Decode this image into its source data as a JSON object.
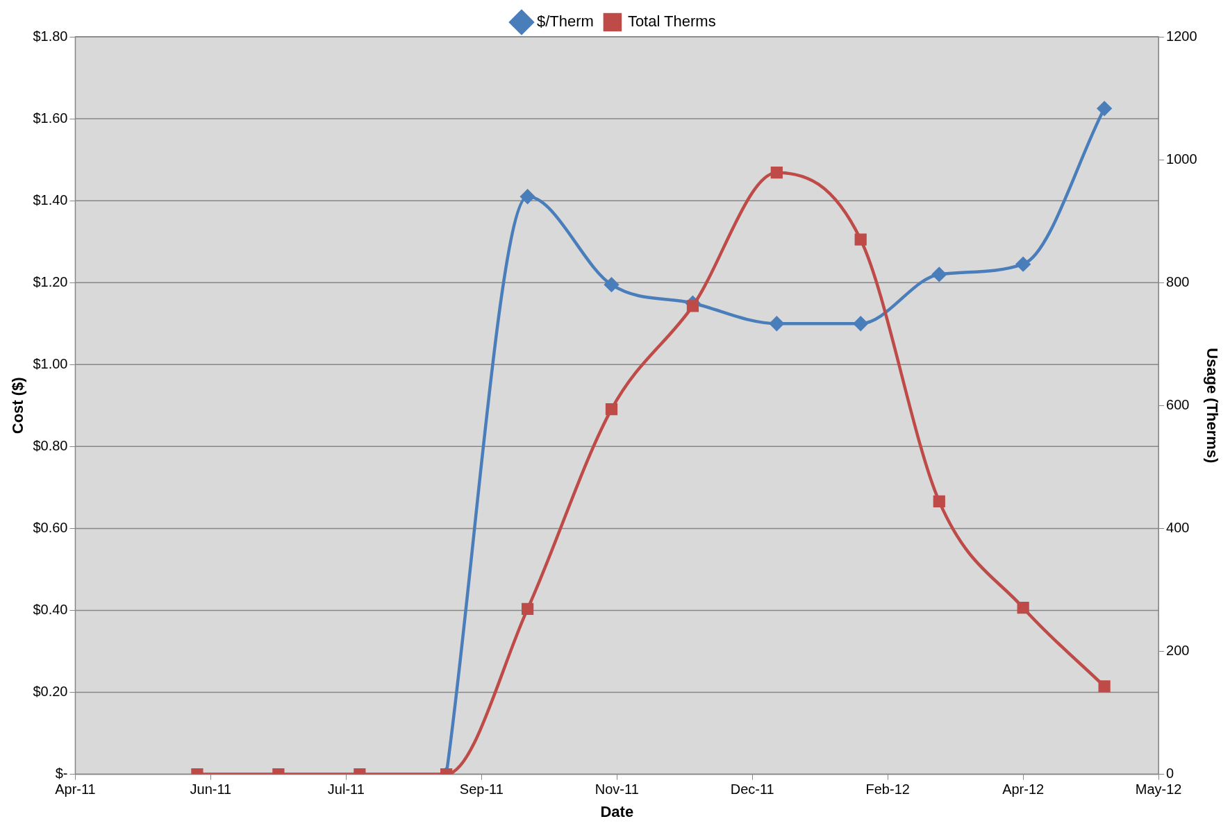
{
  "chart_data": {
    "type": "line",
    "xlabel": "Date",
    "ylabel": "Cost ($)",
    "y2label": "Usage (Therms)",
    "x": [
      "2011-06-04",
      "2011-07-04",
      "2011-08-03",
      "2011-09-04",
      "2011-10-04",
      "2011-11-04",
      "2011-12-04",
      "2012-01-04",
      "2012-02-04",
      "2012-03-04",
      "2012-04-04",
      "2012-05-04"
    ],
    "xlim": [
      "2011-04-20",
      "2012-05-24"
    ],
    "xticks": [
      {
        "value": "2011-04-20",
        "label": "Apr-11"
      },
      {
        "value": "2011-06-09",
        "label": "Jun-11"
      },
      {
        "value": "2011-07-29",
        "label": "Jul-11"
      },
      {
        "value": "2011-09-17",
        "label": "Sep-11"
      },
      {
        "value": "2011-11-06",
        "label": "Nov-11"
      },
      {
        "value": "2011-12-26",
        "label": "Dec-11"
      },
      {
        "value": "2012-02-14",
        "label": "Feb-12"
      },
      {
        "value": "2012-04-04",
        "label": "Apr-12"
      },
      {
        "value": "2012-05-24",
        "label": "May-12"
      }
    ],
    "ylim": [
      0,
      1.8
    ],
    "yticks": [
      {
        "value": 0,
        "label": "$-"
      },
      {
        "value": 0.2,
        "label": "$0.20"
      },
      {
        "value": 0.4,
        "label": "$0.40"
      },
      {
        "value": 0.6,
        "label": "$0.60"
      },
      {
        "value": 0.8,
        "label": "$0.80"
      },
      {
        "value": 1.0,
        "label": "$1.00"
      },
      {
        "value": 1.2,
        "label": "$1.20"
      },
      {
        "value": 1.4,
        "label": "$1.40"
      },
      {
        "value": 1.6,
        "label": "$1.60"
      },
      {
        "value": 1.8,
        "label": "$1.80"
      }
    ],
    "y2lim": [
      0,
      1200
    ],
    "y2ticks": [
      0,
      200,
      400,
      600,
      800,
      1000,
      1200
    ],
    "series": [
      {
        "name": "$/Therm",
        "color": "#4a7ebb",
        "marker": "diamond",
        "values": [
          null,
          null,
          null,
          0,
          1.41,
          1.195,
          1.15,
          1.1,
          1.1,
          1.22,
          1.245,
          1.625
        ]
      },
      {
        "name": "Total Therms",
        "color": "#be4b48",
        "marker": "square",
        "axis": "y2",
        "values": [
          0,
          0,
          0,
          0,
          269,
          594,
          762,
          979,
          870,
          444,
          271,
          143
        ]
      }
    ],
    "grid": "y",
    "legend": "top"
  }
}
